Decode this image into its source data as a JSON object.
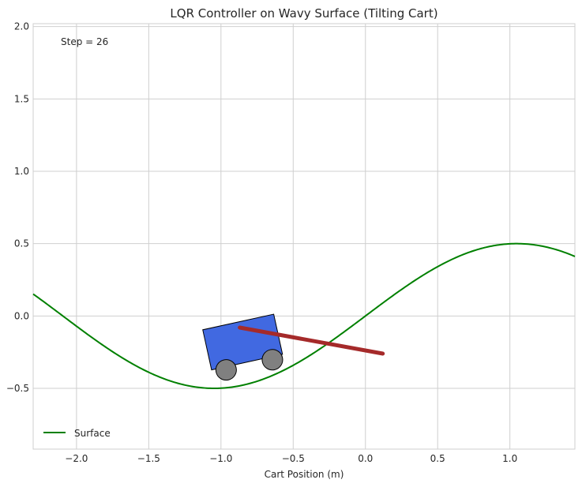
{
  "chart_data": {
    "type": "line",
    "title": "LQR Controller on Wavy Surface (Tilting Cart)",
    "xlabel": "Cart Position (m)",
    "ylabel": "",
    "xlim": [
      -2.3,
      1.45
    ],
    "ylim": [
      -0.92,
      2.02
    ],
    "grid": true,
    "x_ticks": [
      -2.0,
      -1.5,
      -1.0,
      -0.5,
      0.0,
      0.5,
      1.0
    ],
    "x_tick_labels": [
      "−2.0",
      "−1.5",
      "−1.0",
      "−0.5",
      "0.0",
      "0.5",
      "1.0"
    ],
    "y_ticks": [
      -0.5,
      0.0,
      0.5,
      1.0,
      1.5,
      2.0
    ],
    "y_tick_labels": [
      "−0.5",
      "0.0",
      "0.5",
      "1.0",
      "1.5",
      "2.0"
    ],
    "legend_position": "lower-left",
    "series": [
      {
        "name": "Surface",
        "color": "#008000",
        "function": "y = 0.5*sin(1.5*x)",
        "x_range": [
          -2.3,
          1.45
        ]
      }
    ],
    "annotation": {
      "text": "Step = 26"
    },
    "cart": {
      "center_x": -0.85,
      "center_y": -0.18,
      "tilt_deg": -12.4,
      "body_color": "#4169e1",
      "wheel_color": "#808080",
      "pole_color": "#a52a2a",
      "pole_start": [
        -0.87,
        -0.08
      ],
      "pole_end": [
        0.12,
        -0.26
      ]
    }
  }
}
